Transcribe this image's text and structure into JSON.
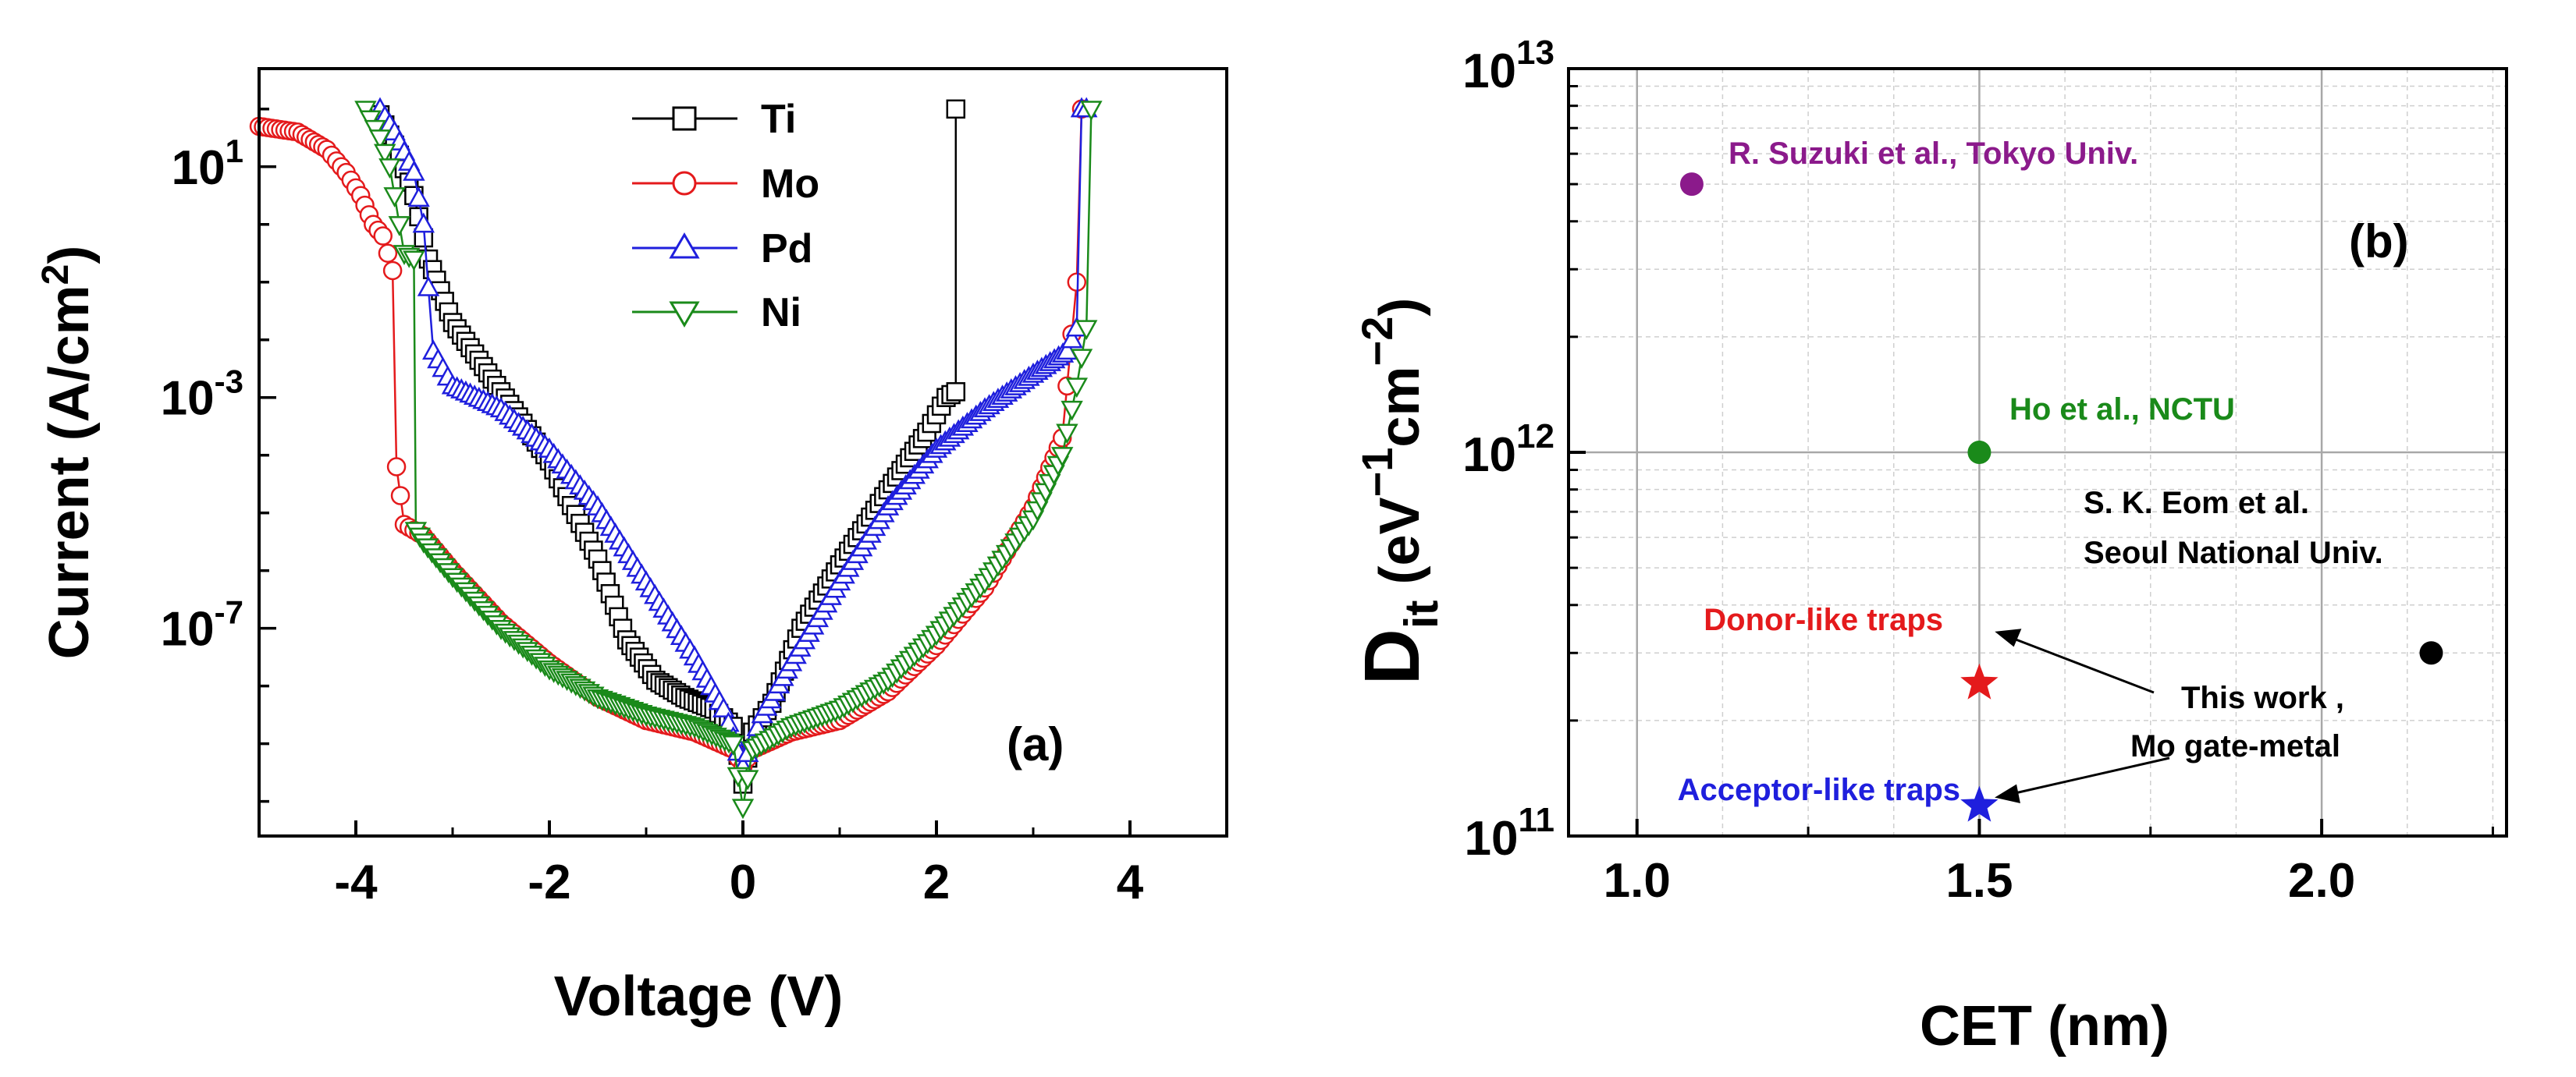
{
  "chart_data": [
    {
      "panel": "a",
      "type": "line",
      "panel_label": "(a)",
      "xlabel": "Voltage (V)",
      "ylabel": "Current (A/cm",
      "ylabel_sup": "2",
      "ylabel_close": ")",
      "xlim": [
        -5,
        5
      ],
      "ylim_log10": [
        -10.6,
        2.7
      ],
      "y_scale": "log",
      "x_ticks": [
        -4,
        -2,
        0,
        2,
        4
      ],
      "x_tick_labels": [
        "-4",
        "-2",
        "0",
        "2",
        "4"
      ],
      "y_tick_labels": [
        {
          "exp": 1,
          "base": "10",
          "sup": "1"
        },
        {
          "exp": -3,
          "base": "10",
          "sup": "-3"
        },
        {
          "exp": -7,
          "base": "10",
          "sup": "-7"
        }
      ],
      "legend_position": "top-center",
      "series": [
        {
          "name": "Ti",
          "color": "#000000",
          "marker": "square",
          "x": [
            -3.75,
            -3.55,
            -3.4,
            -3.25,
            -3.0,
            -2.5,
            -2.0,
            -1.5,
            -1.2,
            -0.9,
            -0.6,
            -0.3,
            -0.1,
            0.0,
            0.1,
            0.3,
            0.6,
            1.0,
            1.5,
            1.9,
            2.1,
            2.2,
            2.2
          ],
          "log10y": [
            1.9,
            1.2,
            0.5,
            -0.6,
            -1.7,
            -2.9,
            -4.1,
            -5.8,
            -7.2,
            -7.9,
            -8.2,
            -8.4,
            -8.7,
            -9.7,
            -8.8,
            -8.3,
            -7.0,
            -5.9,
            -4.6,
            -3.6,
            -3.0,
            -2.9,
            2.0
          ]
        },
        {
          "name": "Mo",
          "color": "#e41a1c",
          "marker": "circle",
          "x": [
            -5.0,
            -4.6,
            -4.3,
            -4.1,
            -3.95,
            -3.82,
            -3.72,
            -3.62,
            -3.58,
            -3.5,
            -3.3,
            -3.0,
            -2.5,
            -2.0,
            -1.5,
            -1.0,
            -0.5,
            -0.1,
            0.0,
            0.1,
            0.5,
            1.0,
            1.5,
            2.0,
            2.5,
            3.0,
            3.3,
            3.45,
            3.5
          ],
          "log10y": [
            1.7,
            1.6,
            1.3,
            0.9,
            0.5,
            0.0,
            -0.2,
            -0.8,
            -4.2,
            -5.2,
            -5.4,
            -6.0,
            -6.9,
            -7.6,
            -8.2,
            -8.6,
            -8.8,
            -9.1,
            -9.4,
            -9.1,
            -8.8,
            -8.6,
            -8.1,
            -7.3,
            -6.3,
            -4.9,
            -3.7,
            -1.0,
            2.0
          ]
        },
        {
          "name": "Pd",
          "color": "#1f1fdd",
          "marker": "triangle-up",
          "x": [
            -3.75,
            -3.6,
            -3.4,
            -3.3,
            -3.2,
            -3.0,
            -2.5,
            -2.0,
            -1.5,
            -1.0,
            -0.5,
            -0.2,
            0.0,
            0.2,
            0.5,
            1.0,
            1.5,
            2.0,
            2.5,
            3.0,
            3.35,
            3.45,
            3.5,
            3.55
          ],
          "log10y": [
            2.0,
            1.6,
            0.9,
            0.0,
            -2.2,
            -2.8,
            -3.2,
            -3.9,
            -4.9,
            -6.2,
            -7.5,
            -8.4,
            -9.4,
            -8.5,
            -7.6,
            -6.2,
            -4.9,
            -3.9,
            -3.2,
            -2.6,
            -2.2,
            -1.8,
            2.0,
            2.0
          ]
        },
        {
          "name": "Ni",
          "color": "#1a8a1a",
          "marker": "triangle-down",
          "x": [
            -3.9,
            -3.75,
            -3.65,
            -3.5,
            -3.4,
            -3.38,
            -3.3,
            -3.0,
            -2.5,
            -2.0,
            -1.5,
            -1.0,
            -0.5,
            -0.1,
            0.0,
            0.1,
            0.5,
            1.0,
            1.5,
            2.0,
            2.5,
            3.0,
            3.3,
            3.45,
            3.55,
            3.6
          ],
          "log10y": [
            2.0,
            1.5,
            1.0,
            -0.5,
            -0.6,
            -5.3,
            -5.5,
            -6.1,
            -7.0,
            -7.7,
            -8.2,
            -8.5,
            -8.7,
            -9.0,
            -10.1,
            -9.1,
            -8.7,
            -8.4,
            -7.9,
            -7.1,
            -6.2,
            -5.1,
            -4.0,
            -2.8,
            -1.8,
            2.0
          ]
        }
      ]
    },
    {
      "panel": "b",
      "type": "scatter",
      "panel_label": "(b)",
      "xlabel": "CET (nm)",
      "ylabel_main": "D",
      "ylabel_sub": "it",
      "ylabel_rest1": " (eV",
      "ylabel_sup1": "−1",
      "ylabel_rest2": "cm",
      "ylabel_sup2": "−2",
      "ylabel_close": ")",
      "xlim": [
        0.9,
        2.27
      ],
      "y_scale": "log",
      "ylim": [
        100000000000.0,
        10000000000000.0
      ],
      "x_ticks": [
        1.0,
        1.5,
        2.0
      ],
      "x_tick_labels": [
        "1.0",
        "1.5",
        "2.0"
      ],
      "y_tick_labels": [
        {
          "exp": 11,
          "base": "10",
          "sup": "11"
        },
        {
          "exp": 12,
          "base": "10",
          "sup": "12"
        },
        {
          "exp": 13,
          "base": "10",
          "sup": "13"
        }
      ],
      "grid": true,
      "points": [
        {
          "x": 1.08,
          "y": 5000000000000.0,
          "marker": "circle",
          "color": "#8b1a8b",
          "label": "R. Suzuki et al., Tokyo Univ."
        },
        {
          "x": 1.5,
          "y": 1000000000000.0,
          "marker": "circle",
          "color": "#1a8a1a",
          "label": "Ho et al., NCTU"
        },
        {
          "x": 2.16,
          "y": 300000000000.0,
          "marker": "circle",
          "color": "#000000",
          "label_lines": [
            "S. K. Eom et al.",
            "Seoul National Univ."
          ]
        },
        {
          "x": 1.5,
          "y": 250000000000.0,
          "marker": "star",
          "color": "#e41a1c",
          "label": "Donor-like traps"
        },
        {
          "x": 1.5,
          "y": 120000000000.0,
          "marker": "star",
          "color": "#1f1fdd",
          "label": "Acceptor-like traps"
        }
      ],
      "annotation": {
        "lines": [
          "This work ,",
          "Mo gate-metal"
        ],
        "color": "#000000"
      }
    }
  ]
}
